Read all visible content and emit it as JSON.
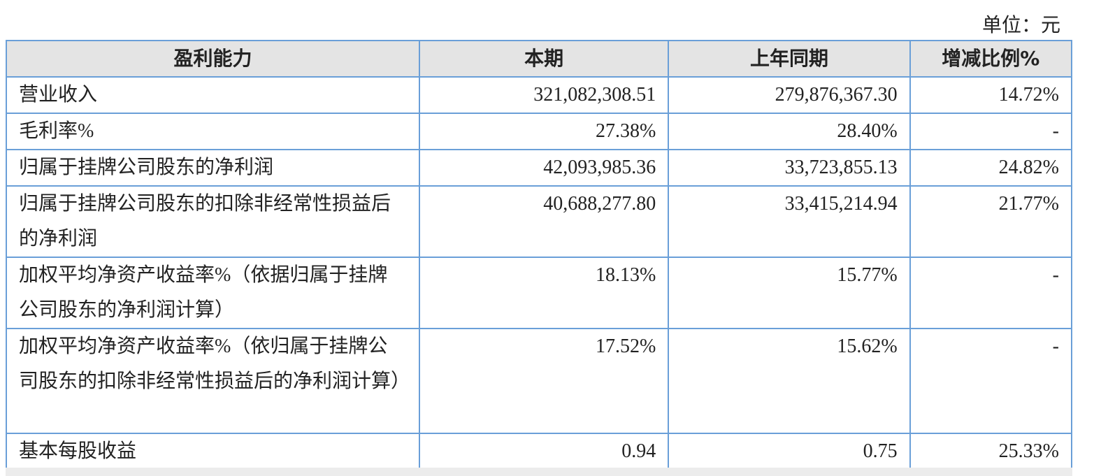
{
  "unit_label": "单位：元",
  "header": [
    "盈利能力",
    "本期",
    "上年同期",
    "增减比例%"
  ],
  "rows": [
    {
      "label": "营业收入",
      "current": "321,082,308.51",
      "previous": "279,876,367.30",
      "change": "14.72%"
    },
    {
      "label": "毛利率%",
      "current": "27.38%",
      "previous": "28.40%",
      "change": "-"
    },
    {
      "label": "归属于挂牌公司股东的净利润",
      "current": "42,093,985.36",
      "previous": "33,723,855.13",
      "change": "24.82%"
    },
    {
      "label": "归属于挂牌公司股东的扣除非经常性损益后的净利润",
      "current": "40,688,277.80",
      "previous": "33,415,214.94",
      "change": "21.77%"
    },
    {
      "label": "加权平均净资产收益率%（依据归属于挂牌公司股东的净利润计算）",
      "current": "18.13%",
      "previous": "15.77%",
      "change": "-"
    },
    {
      "label": "加权平均净资产收益率%（依归属于挂牌公司股东的扣除非经常性损益后的净利润计算）",
      "current": "17.52%",
      "previous": "15.62%",
      "change": "-"
    },
    {
      "label": "基本每股收益",
      "current": "0.94",
      "previous": "0.75",
      "change": "25.33%"
    }
  ]
}
